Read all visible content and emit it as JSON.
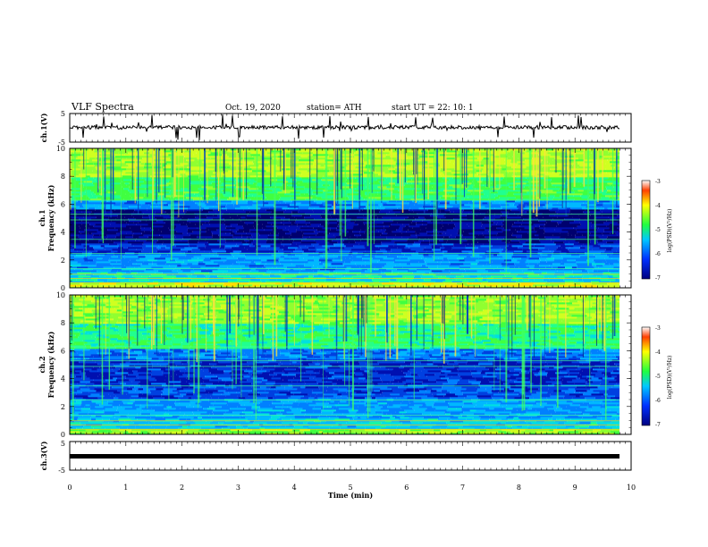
{
  "header": {
    "title": "VLF Spectra",
    "date": "Oct. 19, 2020",
    "station": "station= ATH",
    "start": "start  UT  =   22: 10:  1"
  },
  "chart_data": [
    {
      "type": "line",
      "name": "ch1-waveform",
      "ylabel": "ch.1(V)",
      "ylim": [
        -5,
        5
      ],
      "y_ticks": [
        "5",
        "-5"
      ]
    },
    {
      "type": "heatmap",
      "name": "ch1-spectrogram",
      "ylabel": "ch.1",
      "ylabel2": "Frequency (kHz)",
      "ylim": [
        0,
        10
      ],
      "y_ticks": [
        "0",
        "2",
        "4",
        "6",
        "8",
        "10"
      ],
      "colorbar": {
        "label": "log(PSD)(V²/Hz)",
        "range": [
          -7,
          -3
        ],
        "ticks": [
          "-3",
          "-4",
          "-5",
          "-6",
          "-7"
        ]
      }
    },
    {
      "type": "heatmap",
      "name": "ch2-spectrogram",
      "ylabel": "ch.2",
      "ylabel2": "Frequency (kHz)",
      "ylim": [
        0,
        10
      ],
      "y_ticks": [
        "0",
        "2",
        "4",
        "6",
        "8",
        "10"
      ],
      "colorbar": {
        "label": "log(PSD)(V²/Hz)",
        "range": [
          -7,
          -3
        ],
        "ticks": [
          "-3",
          "-4",
          "-5",
          "-6",
          "-7"
        ]
      }
    },
    {
      "type": "line",
      "name": "ch3-waveform",
      "ylabel": "ch.3(V)",
      "ylim": [
        -5,
        5
      ],
      "y_ticks": [
        "5",
        "-5"
      ]
    }
  ],
  "x_axis": {
    "label": "Time  (min)",
    "xlim": [
      0,
      10
    ],
    "ticks": [
      "0",
      "1",
      "2",
      "3",
      "4",
      "5",
      "6",
      "7",
      "8",
      "9",
      "10"
    ]
  },
  "colors": {
    "spec_low": "#00006e",
    "spec_mid": "#1e90ff",
    "spec_high": "#22ff50",
    "spec_peak": "#ff2000"
  }
}
